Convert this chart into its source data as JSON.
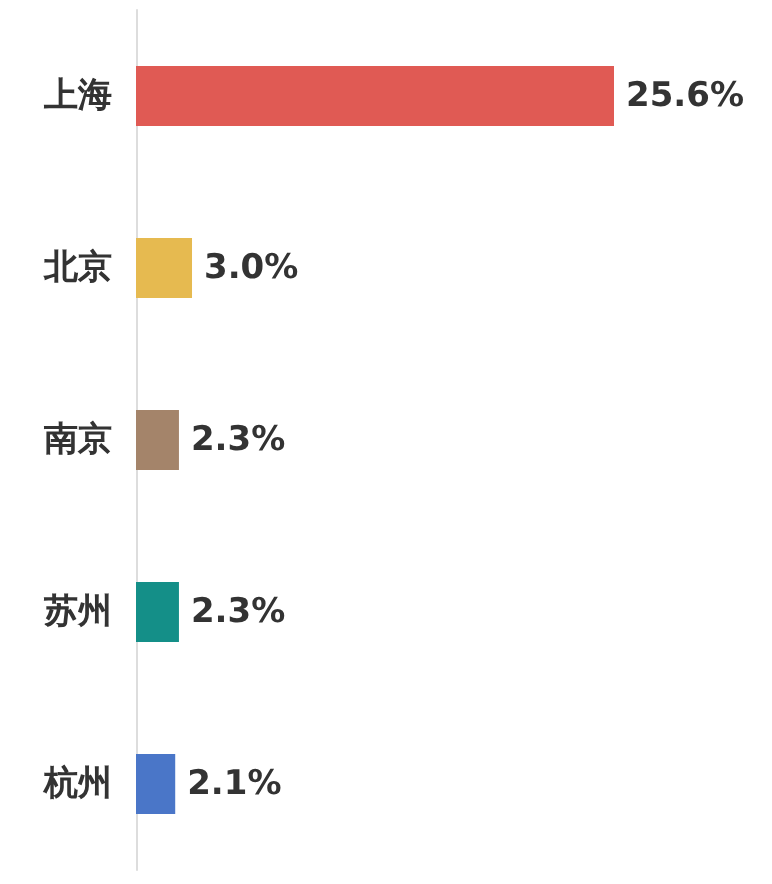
{
  "chart_data": {
    "type": "bar",
    "orientation": "horizontal",
    "categories": [
      "上海",
      "北京",
      "南京",
      "苏州",
      "杭州"
    ],
    "values": [
      25.6,
      3.0,
      2.3,
      2.3,
      2.1
    ],
    "colors": [
      "#e05a54",
      "#e6ba50",
      "#a4846a",
      "#148f88",
      "#4a76c8"
    ],
    "value_labels": [
      "25.6%",
      "3.0%",
      "2.3%",
      "2.3%",
      "2.1%"
    ]
  }
}
